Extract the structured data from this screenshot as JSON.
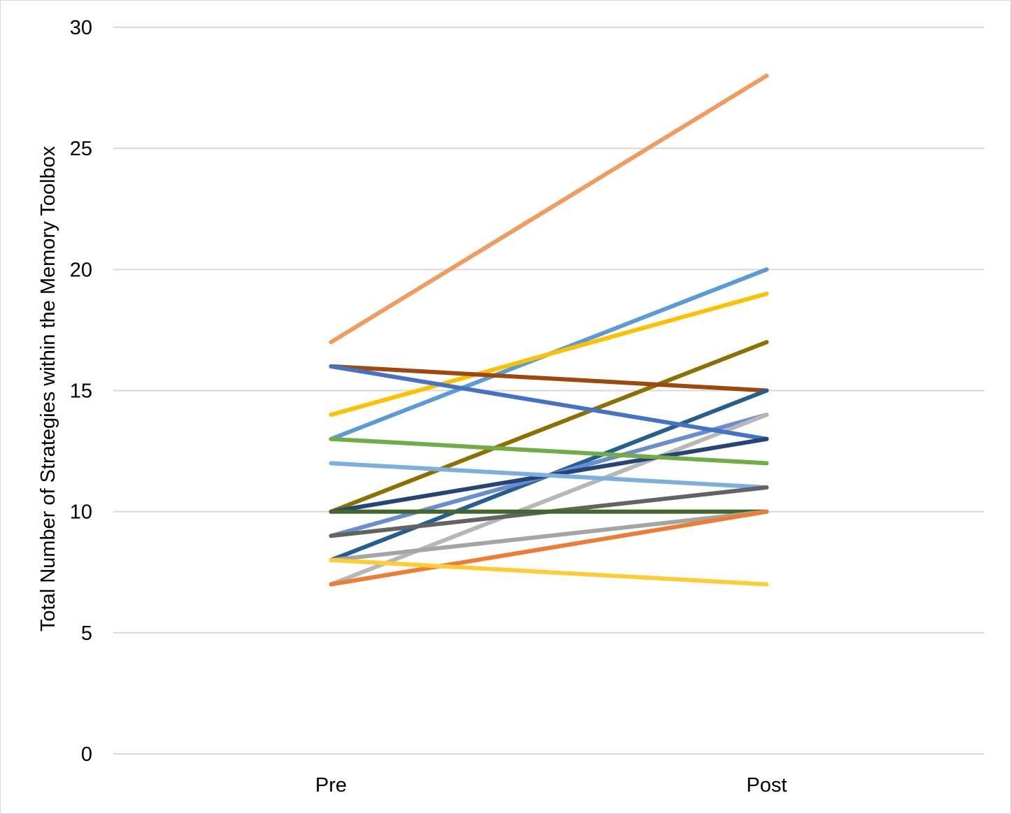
{
  "chart_data": {
    "type": "line",
    "title": "",
    "xlabel": "",
    "ylabel": "Total Number of Strategies within the Memory Toolbox",
    "categories": [
      "Pre",
      "Post"
    ],
    "ylim": [
      0,
      30
    ],
    "yticks": [
      "0",
      "5",
      "10",
      "15",
      "20",
      "25",
      "30"
    ],
    "grid": true,
    "legend": "none",
    "series": [
      {
        "values": [
          17,
          28
        ],
        "color": "#f19b5e"
      },
      {
        "values": [
          13,
          20
        ],
        "color": "#5b9bd5"
      },
      {
        "values": [
          14,
          19
        ],
        "color": "#ffc000"
      },
      {
        "values": [
          10,
          17
        ],
        "color": "#8c7100"
      },
      {
        "values": [
          16,
          15
        ],
        "color": "#9e480e"
      },
      {
        "values": [
          8,
          15
        ],
        "color": "#255e91"
      },
      {
        "values": [
          9,
          14
        ],
        "color": "#698ed0"
      },
      {
        "values": [
          7,
          14
        ],
        "color": "#b7b7b7"
      },
      {
        "values": [
          16,
          13
        ],
        "color": "#4472c4"
      },
      {
        "values": [
          10,
          13
        ],
        "color": "#264478"
      },
      {
        "values": [
          13,
          12
        ],
        "color": "#70ad47"
      },
      {
        "values": [
          12,
          11
        ],
        "color": "#7cafdd"
      },
      {
        "values": [
          9,
          11
        ],
        "color": "#636363"
      },
      {
        "values": [
          10,
          10
        ],
        "color": "#43682b"
      },
      {
        "values": [
          8,
          10
        ],
        "color": "#a5a5a5"
      },
      {
        "values": [
          7,
          10
        ],
        "color": "#ed7d31"
      },
      {
        "values": [
          8,
          7
        ],
        "color": "#ffcd33"
      }
    ]
  }
}
